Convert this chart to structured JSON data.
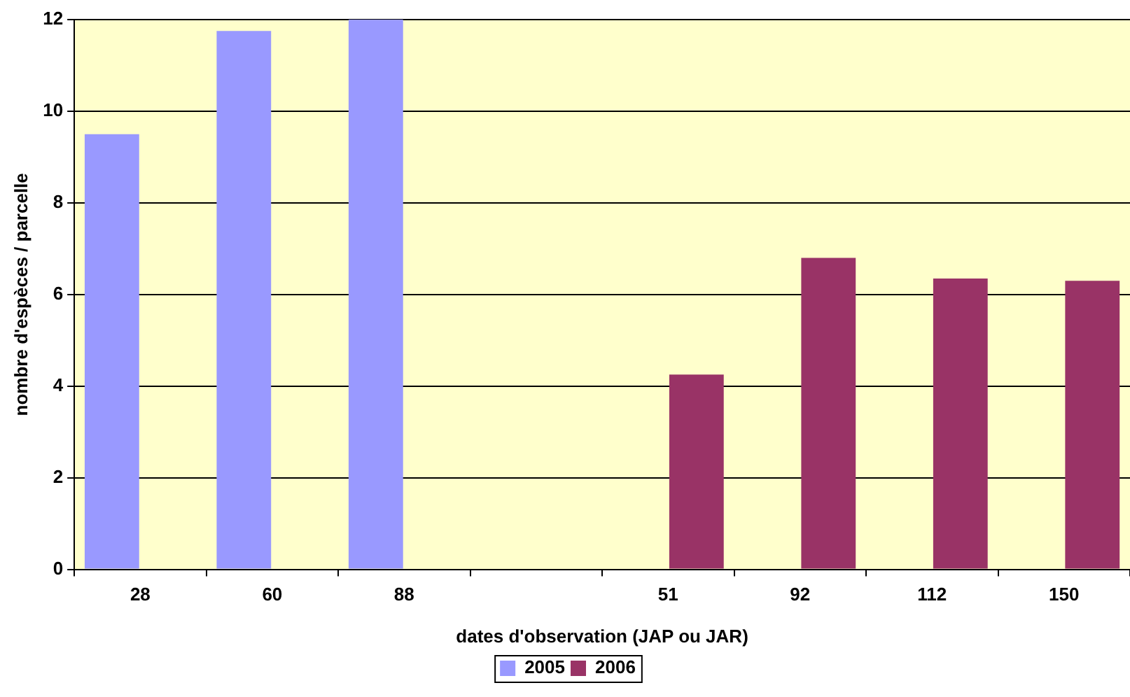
{
  "chart_data": {
    "type": "bar",
    "xlabel": "dates d'observation (JAP ou JAR)",
    "ylabel": "nombre d'espèces / parcelle",
    "categories": [
      "28",
      "60",
      "88",
      null,
      "51",
      "92",
      "112",
      "150"
    ],
    "series": [
      {
        "name": "2005",
        "color": "#9999ff",
        "values": [
          9.5,
          11.75,
          12,
          null,
          null,
          null,
          null,
          null
        ]
      },
      {
        "name": "2006",
        "color": "#993366",
        "values": [
          null,
          null,
          null,
          null,
          4.25,
          6.8,
          6.35,
          6.3
        ]
      }
    ],
    "ylim": [
      0,
      12
    ],
    "yticks": [
      0,
      2,
      4,
      6,
      8,
      10,
      12
    ],
    "grid": "y",
    "legend": "bottom"
  }
}
